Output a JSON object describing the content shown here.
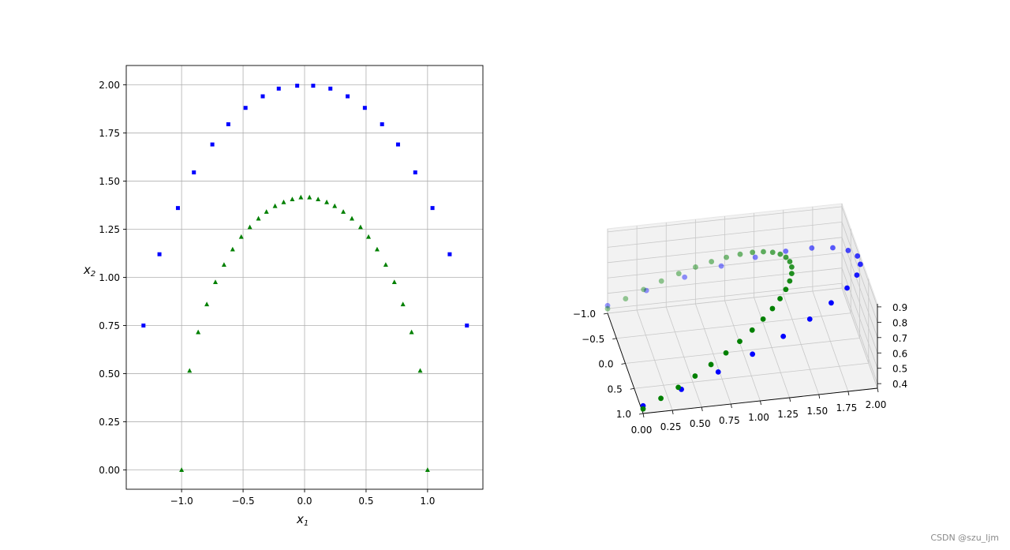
{
  "watermark": "CSDN @szu_ljm",
  "chart_data": [
    {
      "type": "scatter",
      "xlabel": "x",
      "xlabel_subscript": "1",
      "ylabel": "x",
      "ylabel_subscript": "2",
      "xlim": [
        -1.45,
        1.45
      ],
      "ylim": [
        -0.1,
        2.1
      ],
      "grid": true,
      "x_ticks": [
        -1.0,
        -0.5,
        0.0,
        0.5,
        1.0
      ],
      "x_tick_labels": [
        "−1.0",
        "−0.5",
        "0.0",
        "0.5",
        "1.0"
      ],
      "y_ticks": [
        0.0,
        0.25,
        0.5,
        0.75,
        1.0,
        1.25,
        1.5,
        1.75,
        2.0
      ],
      "y_tick_labels": [
        "0.00",
        "0.25",
        "0.50",
        "0.75",
        "1.00",
        "1.25",
        "1.50",
        "1.75",
        "2.00"
      ],
      "series": [
        {
          "marker": "square",
          "color": "#0000ff",
          "points": [
            [
              -1.31,
              0.75
            ],
            [
              -1.18,
              1.12
            ],
            [
              -1.03,
              1.36
            ],
            [
              -0.9,
              1.545
            ],
            [
              -0.75,
              1.69
            ],
            [
              -0.62,
              1.795
            ],
            [
              -0.48,
              1.88
            ],
            [
              -0.34,
              1.94
            ],
            [
              -0.21,
              1.98
            ],
            [
              -0.06,
              1.995
            ],
            [
              0.07,
              1.995
            ],
            [
              0.21,
              1.98
            ],
            [
              0.35,
              1.94
            ],
            [
              0.49,
              1.88
            ],
            [
              0.63,
              1.795
            ],
            [
              0.76,
              1.69
            ],
            [
              0.9,
              1.545
            ],
            [
              1.04,
              1.36
            ],
            [
              1.18,
              1.12
            ],
            [
              1.32,
              0.75
            ]
          ]
        },
        {
          "marker": "triangle",
          "color": "#008000",
          "points": [
            [
              -1.0,
              0.0
            ],
            [
              -0.935,
              0.515
            ],
            [
              -0.865,
              0.715
            ],
            [
              -0.795,
              0.86
            ],
            [
              -0.725,
              0.975
            ],
            [
              -0.655,
              1.065
            ],
            [
              -0.585,
              1.145
            ],
            [
              -0.515,
              1.21
            ],
            [
              -0.445,
              1.26
            ],
            [
              -0.375,
              1.305
            ],
            [
              -0.31,
              1.34
            ],
            [
              -0.24,
              1.37
            ],
            [
              -0.17,
              1.39
            ],
            [
              -0.1,
              1.405
            ],
            [
              -0.03,
              1.415
            ],
            [
              0.04,
              1.415
            ],
            [
              0.11,
              1.405
            ],
            [
              0.18,
              1.39
            ],
            [
              0.245,
              1.37
            ],
            [
              0.315,
              1.34
            ],
            [
              0.385,
              1.305
            ],
            [
              0.455,
              1.26
            ],
            [
              0.52,
              1.21
            ],
            [
              0.59,
              1.145
            ],
            [
              0.66,
              1.065
            ],
            [
              0.73,
              0.975
            ],
            [
              0.8,
              0.86
            ],
            [
              0.87,
              0.715
            ],
            [
              0.94,
              0.515
            ],
            [
              1.0,
              0.0
            ]
          ]
        }
      ]
    },
    {
      "type": "scatter3d",
      "x_ticks": [
        0.0,
        0.25,
        0.5,
        0.75,
        1.0,
        1.25,
        1.5,
        1.75,
        2.0
      ],
      "x_tick_labels": [
        "0.00",
        "0.25",
        "0.50",
        "0.75",
        "1.00",
        "1.25",
        "1.50",
        "1.75",
        "2.00"
      ],
      "y_ticks": [
        -1.0,
        -0.5,
        0.0,
        0.5,
        1.0
      ],
      "y_tick_labels": [
        "−1.0",
        "−0.5",
        "0.0",
        "0.5",
        "1.0"
      ],
      "z_ticks": [
        0.4,
        0.5,
        0.6,
        0.7,
        0.8,
        0.9
      ],
      "z_tick_labels": [
        "0.4",
        "0.5",
        "0.6",
        "0.7",
        "0.8",
        "0.9"
      ],
      "grid": true,
      "series": [
        {
          "color": "#0000ff",
          "marker": "circle"
        },
        {
          "color": "#008000",
          "marker": "circle"
        }
      ]
    }
  ]
}
